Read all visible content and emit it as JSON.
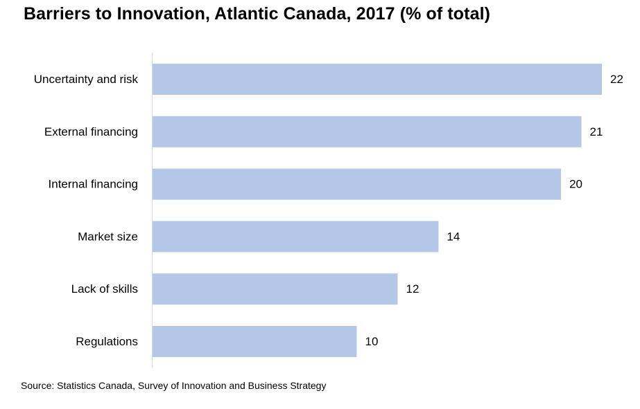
{
  "chart_data": {
    "type": "bar",
    "orientation": "horizontal",
    "title": "Barriers to Innovation, Atlantic Canada, 2017 (% of total)",
    "categories": [
      "Uncertainty and risk",
      "External financing",
      "Internal financing",
      "Market size",
      "Lack of skills",
      "Regulations"
    ],
    "values": [
      22,
      21,
      20,
      14,
      12,
      10
    ],
    "xlim": [
      0,
      22
    ],
    "grid": false,
    "legend": "none",
    "bar_color": "#b4c7e7",
    "axis_color": "#d9d9d9",
    "data_labels": true
  },
  "source": "Source: Statistics Canada, Survey of Innovation and Business Strategy"
}
